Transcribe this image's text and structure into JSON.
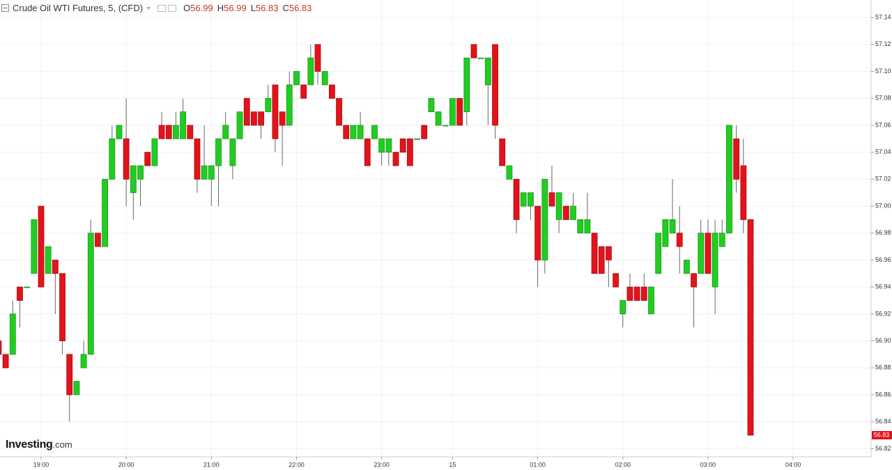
{
  "chart_data": {
    "type": "candlestick",
    "title": "Crude Oil WTI Futures, 5, (CFD)",
    "ohlc_legend": {
      "labels": [
        "O",
        "H",
        "L",
        "C"
      ],
      "values": [
        56.99,
        56.99,
        56.83,
        56.83
      ]
    },
    "watermark": [
      "Investing",
      ".com"
    ],
    "up_color": "#22cc22",
    "down_color": "#e3131b",
    "grid": true,
    "ylim": [
      56.814,
      57.153
    ],
    "yticks": [
      57.14,
      57.12,
      {
        "value": 57.1,
        "label": "57.10"
      },
      57.08,
      57.06,
      57.04,
      57.02,
      {
        "value": 57,
        "label": "57.00"
      },
      56.98,
      56.96,
      56.94,
      56.92,
      {
        "value": 56.9,
        "label": "56.90"
      },
      56.88,
      56.86,
      56.84,
      56.82
    ],
    "categories": [
      null,
      null,
      null,
      null,
      null,
      null,
      "19:00",
      null,
      null,
      null,
      null,
      null,
      null,
      null,
      null,
      null,
      null,
      null,
      "20:00",
      null,
      null,
      null,
      null,
      null,
      null,
      null,
      null,
      null,
      null,
      null,
      "21:00",
      null,
      null,
      null,
      null,
      null,
      null,
      null,
      null,
      null,
      null,
      null,
      "22:00",
      null,
      null,
      null,
      null,
      null,
      null,
      null,
      null,
      null,
      null,
      null,
      "23:00",
      null,
      null,
      null,
      null,
      null,
      null,
      null,
      null,
      null,
      "15",
      null,
      null,
      null,
      null,
      null,
      null,
      null,
      null,
      null,
      null,
      null,
      "01:00",
      null,
      null,
      null,
      null,
      null,
      null,
      null,
      null,
      null,
      null,
      null,
      "02:00",
      null,
      null,
      null,
      null,
      null,
      null,
      null,
      null,
      null,
      null,
      null,
      "03:00",
      null,
      null,
      null,
      null,
      null,
      null,
      null,
      null,
      null,
      null,
      null,
      "04:00",
      null,
      null,
      null,
      null,
      null,
      null,
      null,
      null,
      null,
      null,
      null
    ],
    "open": [
      56.9,
      56.89,
      56.89,
      56.94,
      56.94,
      56.95,
      57.0,
      56.95,
      56.96,
      56.95,
      56.89,
      56.86,
      56.88,
      56.89,
      56.98,
      56.97,
      57.02,
      57.05,
      57.05,
      57.01,
      57.02,
      57.04,
      57.03,
      57.06,
      57.06,
      57.05,
      57.05,
      57.06,
      57.05,
      57.02,
      57.02,
      57.03,
      57.05,
      57.03,
      57.05,
      57.08,
      57.07,
      57.07,
      57.07,
      57.09,
      57.07,
      57.06,
      57.09,
      57.09,
      57.09,
      57.12,
      57.09,
      57.09,
      57.08,
      57.06,
      57.05,
      57.05,
      57.05,
      57.05,
      57.04,
      57.04,
      57.04,
      57.05,
      57.05,
      57.05,
      57.06,
      57.07,
      57.06,
      57.06,
      57.06,
      57.08,
      57.07,
      57.12,
      57.11,
      57.09,
      57.12,
      57.05,
      57.02,
      57.02,
      57.0,
      57.0,
      57.0,
      56.96,
      57.01,
      56.99,
      57.0,
      56.99,
      56.98,
      56.98,
      56.98,
      56.97,
      56.97,
      56.95,
      56.92,
      56.94,
      56.94,
      56.94,
      56.92,
      56.95,
      56.97,
      56.98,
      56.98,
      56.95,
      56.95,
      56.95,
      56.98,
      56.94,
      56.97,
      56.98,
      57.05,
      57.03,
      56.99,
      null,
      null,
      null,
      null,
      null,
      null,
      null,
      null,
      null,
      null,
      null,
      null,
      null,
      null,
      null,
      null,
      null
    ],
    "high": [
      56.9,
      56.89,
      56.93,
      56.94,
      56.94,
      56.99,
      57.0,
      56.97,
      56.96,
      56.95,
      56.89,
      56.87,
      56.9,
      56.99,
      56.98,
      57.02,
      57.06,
      57.06,
      57.08,
      57.03,
      57.03,
      57.04,
      57.05,
      57.07,
      57.06,
      57.07,
      57.08,
      57.06,
      57.05,
      57.06,
      57.03,
      57.05,
      57.07,
      57.05,
      57.07,
      57.08,
      57.07,
      57.07,
      57.09,
      57.09,
      57.07,
      57.1,
      57.1,
      57.09,
      57.12,
      57.12,
      57.1,
      57.09,
      57.08,
      57.06,
      57.06,
      57.07,
      57.05,
      57.06,
      57.05,
      57.05,
      57.04,
      57.05,
      57.05,
      57.05,
      57.06,
      57.08,
      57.07,
      57.06,
      57.08,
      57.08,
      57.11,
      57.12,
      57.11,
      57.11,
      57.12,
      57.05,
      57.03,
      57.02,
      57.01,
      57.01,
      57.0,
      57.02,
      57.03,
      57.01,
      57.0,
      57.01,
      56.99,
      57.01,
      56.98,
      56.97,
      56.97,
      56.95,
      56.93,
      56.95,
      56.94,
      56.95,
      56.94,
      56.98,
      56.99,
      57.02,
      57.0,
      56.96,
      56.95,
      56.99,
      56.99,
      56.99,
      56.99,
      57.06,
      57.06,
      57.05,
      56.99,
      null,
      null,
      null,
      null,
      null,
      null,
      null,
      null,
      null,
      null,
      null,
      null,
      null,
      null,
      null,
      null,
      null
    ],
    "low": [
      56.89,
      56.88,
      56.89,
      56.91,
      56.94,
      56.95,
      56.94,
      56.95,
      56.92,
      56.89,
      56.84,
      56.86,
      56.88,
      56.89,
      56.97,
      56.97,
      57.02,
      57.05,
      57.0,
      56.99,
      57.0,
      57.03,
      57.03,
      57.05,
      57.05,
      57.05,
      57.05,
      57.05,
      57.01,
      57.02,
      57.0,
      57.0,
      57.05,
      57.02,
      57.05,
      57.06,
      57.06,
      57.05,
      57.07,
      57.04,
      57.03,
      57.06,
      57.09,
      57.08,
      57.09,
      57.09,
      57.09,
      57.08,
      57.06,
      57.05,
      57.05,
      57.05,
      57.03,
      57.05,
      57.03,
      57.03,
      57.03,
      57.04,
      57.03,
      57.05,
      57.05,
      57.07,
      57.06,
      57.06,
      57.06,
      57.06,
      57.06,
      57.11,
      57.11,
      57.06,
      57.05,
      57.03,
      57.02,
      56.98,
      57.0,
      56.99,
      56.94,
      56.95,
      57.0,
      56.98,
      56.99,
      56.99,
      56.98,
      56.98,
      56.95,
      56.95,
      56.94,
      56.94,
      56.91,
      56.93,
      56.93,
      56.93,
      56.92,
      56.95,
      56.97,
      56.98,
      56.95,
      56.95,
      56.91,
      56.95,
      56.95,
      56.92,
      56.97,
      56.98,
      57.01,
      56.98,
      56.83,
      null,
      null,
      null,
      null,
      null,
      null,
      null,
      null,
      null,
      null,
      null,
      null,
      null,
      null,
      null,
      null,
      null
    ],
    "close": [
      56.89,
      56.88,
      56.92,
      56.93,
      56.94,
      56.99,
      56.94,
      56.97,
      56.95,
      56.9,
      56.86,
      56.87,
      56.89,
      56.98,
      56.97,
      57.02,
      57.05,
      57.06,
      57.02,
      57.03,
      57.03,
      57.03,
      57.05,
      57.05,
      57.05,
      57.06,
      57.07,
      57.05,
      57.02,
      57.03,
      57.03,
      57.05,
      57.06,
      57.05,
      57.07,
      57.06,
      57.06,
      57.06,
      57.08,
      57.05,
      57.06,
      57.09,
      57.1,
      57.08,
      57.11,
      57.1,
      57.1,
      57.08,
      57.06,
      57.05,
      57.06,
      57.06,
      57.03,
      57.06,
      57.05,
      57.05,
      57.03,
      57.04,
      57.03,
      57.05,
      57.05,
      57.08,
      57.07,
      57.06,
      57.08,
      57.06,
      57.11,
      57.11,
      57.11,
      57.11,
      57.06,
      57.03,
      57.03,
      56.99,
      57.01,
      57.01,
      56.96,
      57.02,
      57.0,
      57.01,
      56.99,
      57.0,
      56.99,
      56.99,
      56.95,
      56.95,
      56.96,
      56.94,
      56.93,
      56.93,
      56.93,
      56.93,
      56.94,
      56.98,
      56.99,
      56.99,
      56.97,
      56.96,
      56.94,
      56.98,
      56.95,
      56.98,
      56.98,
      57.06,
      57.02,
      56.99,
      56.83,
      null,
      null,
      null,
      null,
      null,
      null,
      null,
      null,
      null,
      null,
      null,
      null,
      null,
      null,
      null,
      null,
      null
    ]
  }
}
